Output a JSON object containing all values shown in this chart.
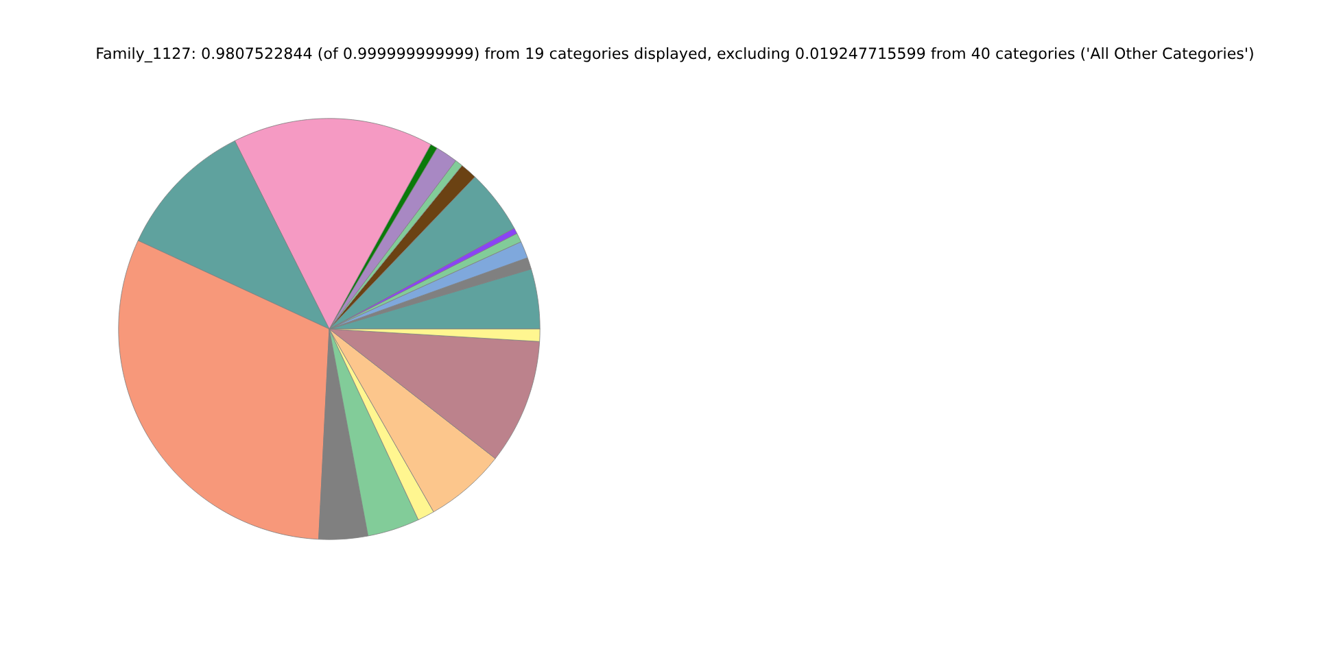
{
  "chart_data": {
    "type": "pie",
    "title": "Family_1127: 0.9807522844 (of 0.999999999999) from 19 categories displayed, excluding 0.019247715599 from 40 categories ('All Other Categories')",
    "categories": [
      null,
      null,
      null,
      null,
      null,
      null,
      null,
      null,
      null,
      null,
      null,
      null,
      null,
      null,
      null,
      null,
      null,
      null,
      null
    ],
    "values": [
      4.6,
      0.9,
      1.3,
      0.7,
      0.45,
      4.9,
      1.3,
      0.6,
      1.7,
      0.55,
      15.4,
      10.7,
      31.1,
      3.75,
      4.0,
      1.3,
      6.2,
      9.6,
      0.95
    ],
    "colors": [
      "#5fa29e",
      "#808080",
      "#7fa8dc",
      "#82cc99",
      "#8a44f5",
      "#5fa29e",
      "#6b4213",
      "#82cc99",
      "#a888c3",
      "#0a7a0a",
      "#f59ac3",
      "#5fa29e",
      "#f7987a",
      "#808080",
      "#82cc99",
      "#fff690",
      "#fcc68c",
      "#bc828c",
      "#fff690"
    ]
  }
}
